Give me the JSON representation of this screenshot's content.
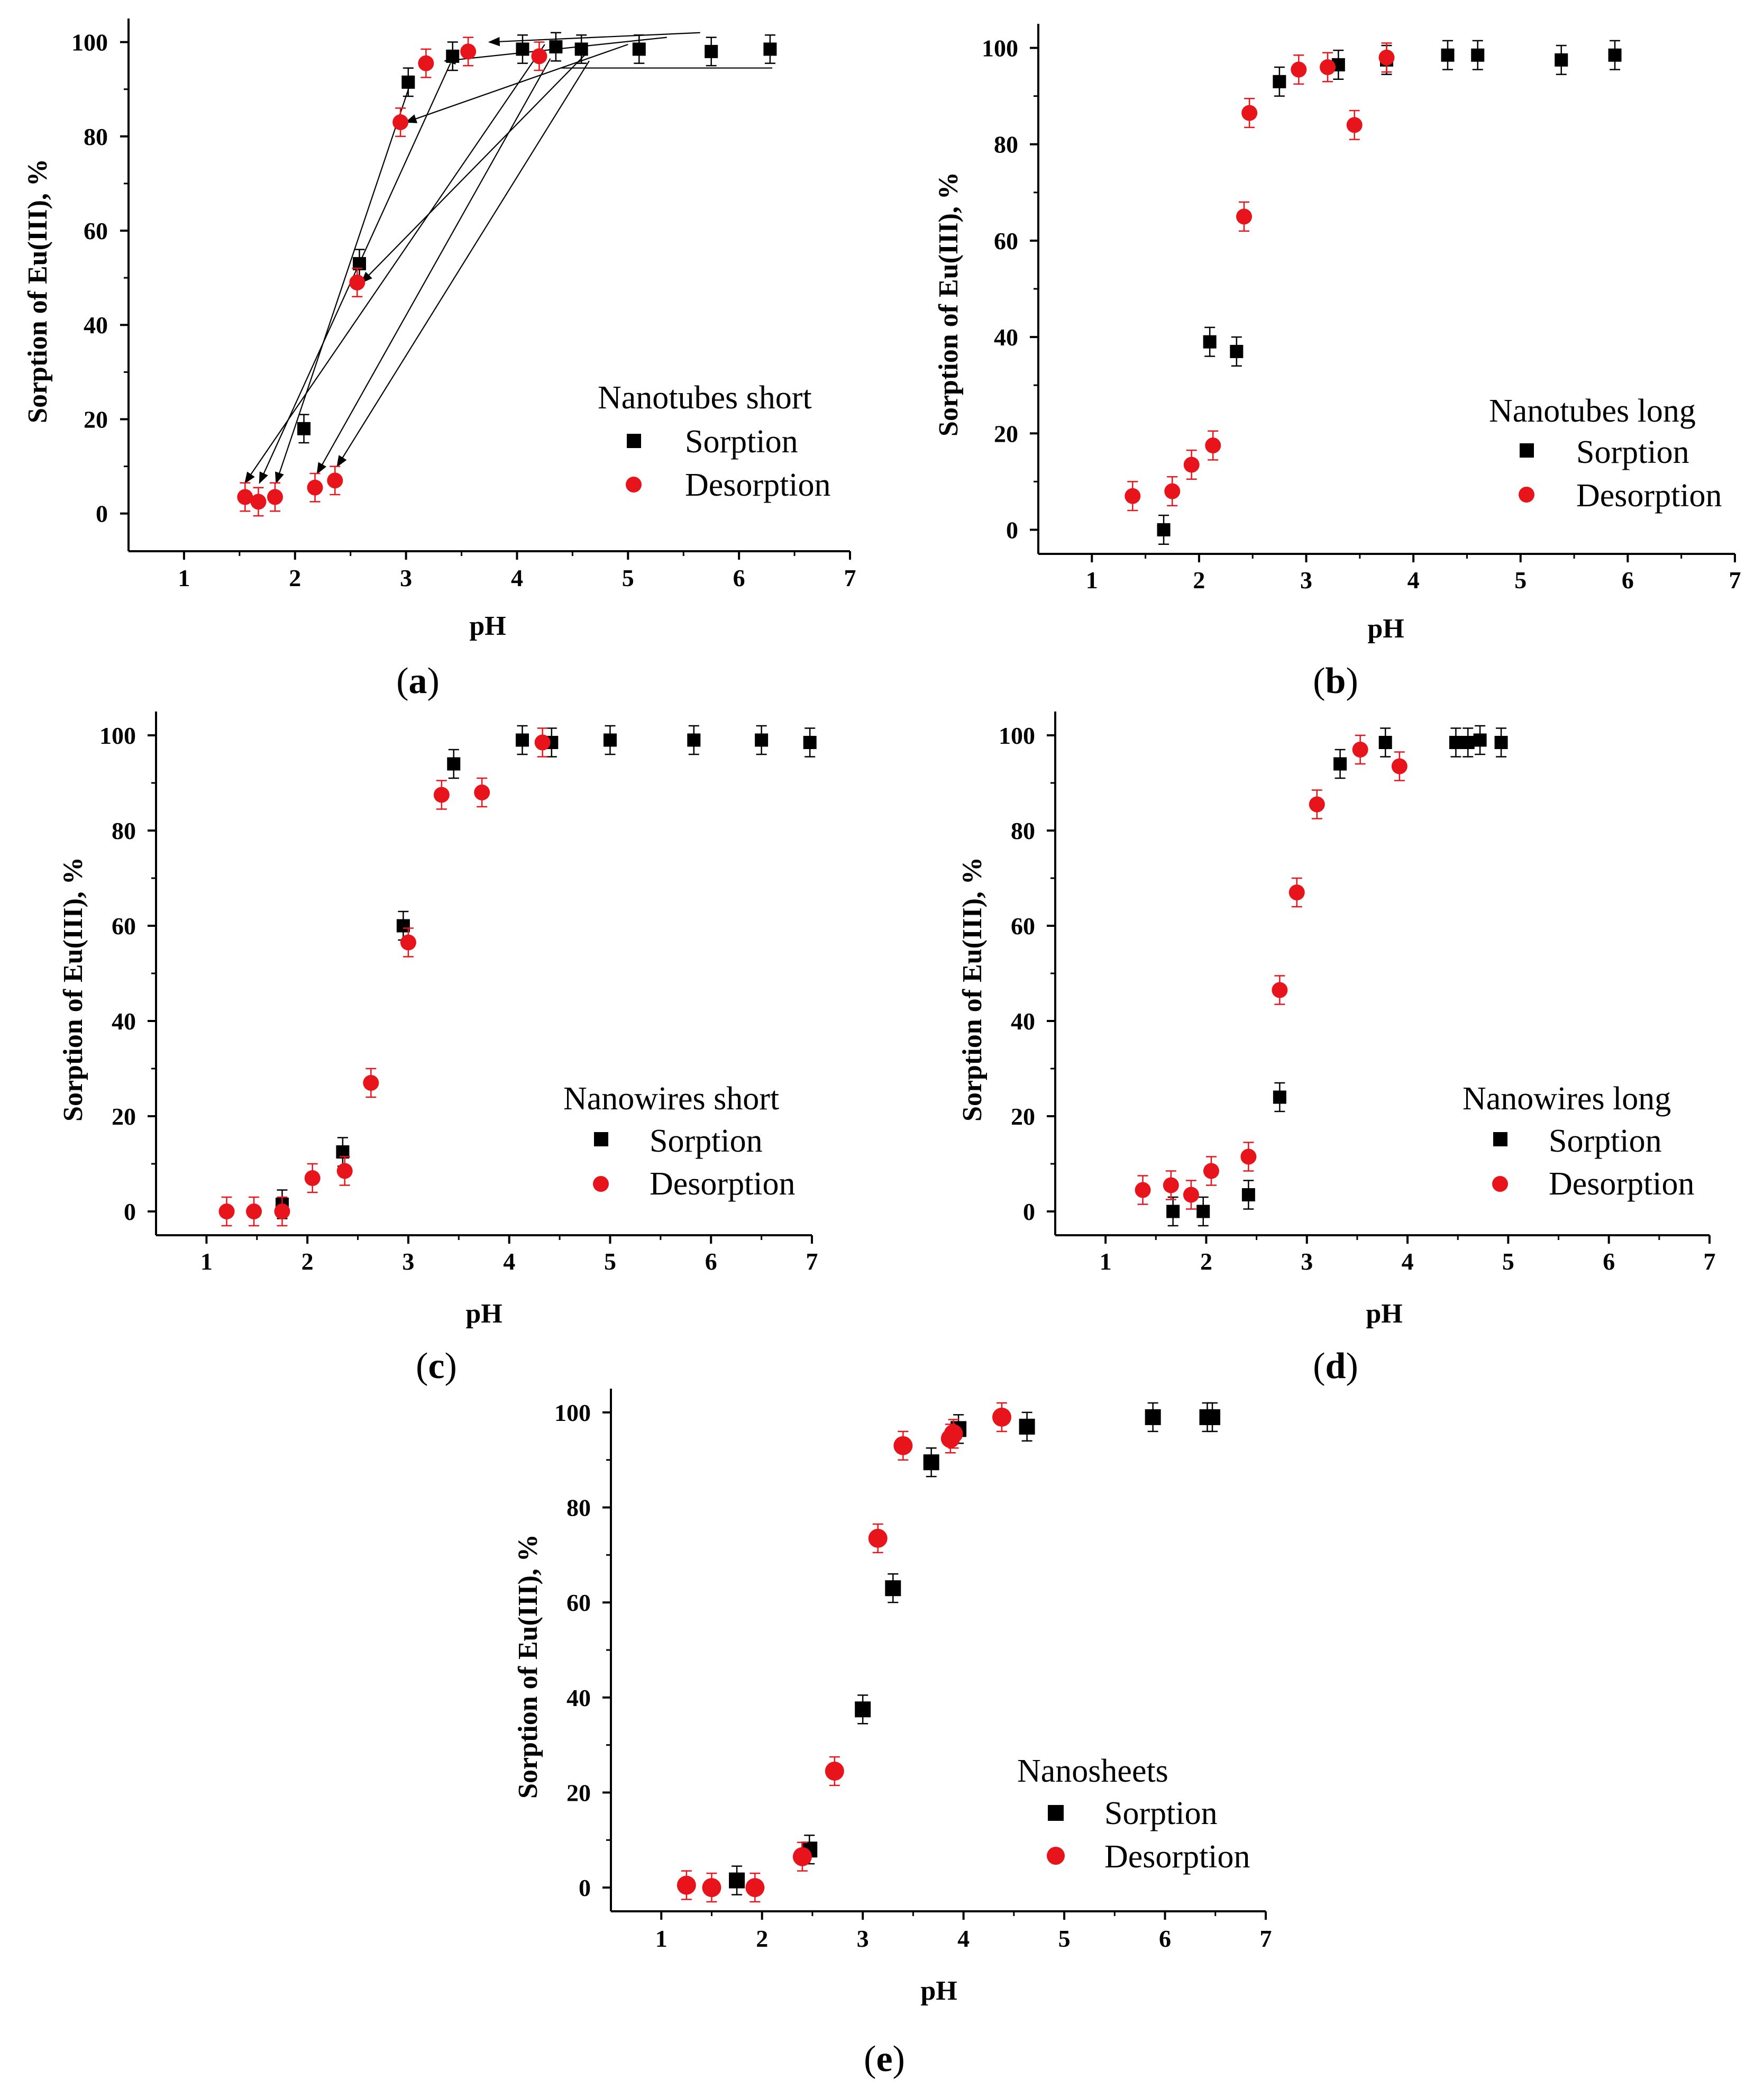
{
  "figure": {
    "panels": [
      {
        "id": "a",
        "label_open": "(",
        "label_letter": "a",
        "label_close": ")"
      },
      {
        "id": "b",
        "label_open": "(",
        "label_letter": "b",
        "label_close": ")"
      },
      {
        "id": "c",
        "label_open": "(",
        "label_letter": "c",
        "label_close": ")"
      },
      {
        "id": "d",
        "label_open": "(",
        "label_letter": "d",
        "label_close": ")"
      },
      {
        "id": "e",
        "label_open": "(",
        "label_letter": "e",
        "label_close": ")"
      }
    ]
  },
  "colors": {
    "sorption": "#000000",
    "desorption": "#e8141b",
    "axis": "#000000"
  },
  "chart_data": [
    {
      "id": "a",
      "type": "scatter",
      "title": "",
      "xlabel": "pH",
      "ylabel": "Sorption of Eu(III), %",
      "xlim": [
        0.5,
        7
      ],
      "ylim": [
        -8,
        105
      ],
      "xticks": [
        1,
        2,
        3,
        4,
        5,
        6,
        7
      ],
      "yticks": [
        0,
        20,
        40,
        60,
        80,
        100
      ],
      "legend_title": "Nanotubes short",
      "series": [
        {
          "name": "Sorption",
          "marker": "square",
          "x": [
            2.08,
            2.58,
            3.02,
            3.42,
            4.05,
            4.35,
            4.58,
            5.1,
            5.75,
            6.28
          ],
          "y": [
            18,
            53,
            91.5,
            97,
            98.5,
            99,
            98.5,
            98.5,
            98,
            98.5
          ],
          "err": 3
        },
        {
          "name": "Desorption",
          "marker": "circle",
          "x": [
            1.55,
            1.67,
            1.82,
            2.18,
            2.36,
            2.56,
            2.95,
            3.18,
            3.56,
            4.2
          ],
          "y": [
            3.5,
            2.5,
            3.5,
            5.5,
            7,
            49,
            83,
            95.5,
            98,
            97
          ],
          "err": 3
        }
      ],
      "arrows": [
        {
          "from": [
            5.65,
            102
          ],
          "to": [
            3.75,
            100
          ]
        },
        {
          "from": [
            5.35,
            101
          ],
          "to": [
            3.35,
            96
          ]
        },
        {
          "from": [
            5.0,
            99.5
          ],
          "to": [
            3.0,
            83
          ]
        },
        {
          "from": [
            4.25,
            99.5
          ],
          "to": [
            1.55,
            6.5
          ]
        },
        {
          "from": [
            3.4,
            95.5
          ],
          "to": [
            1.68,
            6.5
          ]
        },
        {
          "from": [
            3.05,
            92
          ],
          "to": [
            1.83,
            6.5
          ]
        },
        {
          "from": [
            4.62,
            97.5
          ],
          "to": [
            2.6,
            49
          ]
        },
        {
          "from": [
            4.3,
            96.5
          ],
          "to": [
            2.2,
            8.5
          ]
        },
        {
          "from": [
            4.65,
            96
          ],
          "to": [
            2.38,
            10
          ]
        }
      ],
      "hline": {
        "x": [
          4.4,
          6.3
        ],
        "y": 94.5
      }
    },
    {
      "id": "b",
      "type": "scatter",
      "title": "",
      "xlabel": "pH",
      "ylabel": "Sorption of Eu(III), %",
      "xlim": [
        0.5,
        7
      ],
      "ylim": [
        -5,
        105
      ],
      "xticks": [
        1,
        2,
        3,
        4,
        5,
        6,
        7
      ],
      "yticks": [
        0,
        20,
        40,
        60,
        80,
        100
      ],
      "legend_title": "Nanotubes long",
      "series": [
        {
          "name": "Sorption",
          "marker": "square",
          "x": [
            1.67,
            2.1,
            2.35,
            2.75,
            3.3,
            3.75,
            4.32,
            4.6,
            5.38,
            5.88
          ],
          "y": [
            0,
            39,
            37,
            93,
            96.5,
            97.5,
            98.5,
            98.5,
            97.5,
            98.5
          ],
          "err": 3
        },
        {
          "name": "Desorption",
          "marker": "circle",
          "x": [
            1.38,
            1.75,
            1.93,
            2.13,
            2.42,
            2.47,
            2.93,
            3.2,
            3.45,
            3.75
          ],
          "y": [
            7,
            8,
            13.5,
            17.5,
            65,
            86.5,
            95.5,
            96,
            84,
            98
          ],
          "err": 3
        }
      ]
    },
    {
      "id": "c",
      "type": "scatter",
      "title": "",
      "xlabel": "pH",
      "ylabel": "Sorption of Eu(III), %",
      "xlim": [
        0.5,
        7
      ],
      "ylim": [
        -5,
        105
      ],
      "xticks": [
        1,
        2,
        3,
        4,
        5,
        6,
        7
      ],
      "yticks": [
        0,
        20,
        40,
        60,
        80,
        100
      ],
      "legend_title": "Nanowires short",
      "series": [
        {
          "name": "Sorption",
          "marker": "square",
          "x": [
            1.75,
            2.35,
            2.95,
            3.45,
            4.13,
            4.42,
            5.0,
            5.83,
            6.5,
            6.98
          ],
          "y": [
            1.5,
            12.5,
            60,
            94,
            99,
            98.5,
            99,
            99,
            99,
            98.5
          ],
          "err": 3
        },
        {
          "name": "Desorption",
          "marker": "circle",
          "x": [
            1.2,
            1.47,
            1.75,
            2.05,
            2.37,
            2.63,
            3.0,
            3.33,
            3.73,
            4.33
          ],
          "y": [
            0,
            0,
            0,
            7,
            8.5,
            27,
            56.5,
            87.5,
            88,
            98.5
          ],
          "err": 3
        }
      ]
    },
    {
      "id": "d",
      "type": "scatter",
      "title": "",
      "xlabel": "pH",
      "ylabel": "Sorption of Eu(III), %",
      "xlim": [
        0.5,
        7
      ],
      "ylim": [
        -5,
        105
      ],
      "xticks": [
        1,
        2,
        3,
        4,
        5,
        6,
        7
      ],
      "yticks": [
        0,
        20,
        40,
        60,
        80,
        100
      ],
      "legend_title": "Nanowires long",
      "series": [
        {
          "name": "Sorption",
          "marker": "square",
          "x": [
            1.67,
            1.97,
            2.42,
            2.73,
            3.33,
            3.78,
            4.48,
            4.6,
            4.72,
            4.93
          ],
          "y": [
            0,
            0,
            3.5,
            24,
            94,
            98.5,
            98.5,
            98.5,
            99,
            98.5
          ],
          "err": 3
        },
        {
          "name": "Desorption",
          "marker": "circle",
          "x": [
            1.37,
            1.65,
            1.85,
            2.05,
            2.42,
            2.73,
            2.9,
            3.1,
            3.53,
            3.92
          ],
          "y": [
            4.5,
            5.5,
            3.5,
            8.5,
            11.5,
            46.5,
            67,
            85.5,
            97,
            93.5
          ],
          "err": 3
        }
      ]
    },
    {
      "id": "e",
      "type": "scatter",
      "title": "",
      "xlabel": "pH",
      "ylabel": "Sorption of Eu(III), %",
      "xlim": [
        0.5,
        7
      ],
      "ylim": [
        -5,
        105
      ],
      "xticks": [
        1,
        2,
        3,
        4,
        5,
        6,
        7
      ],
      "yticks": [
        0,
        20,
        40,
        60,
        80,
        100
      ],
      "legend_title": "Nanosheets",
      "series": [
        {
          "name": "Sorption",
          "marker": "square",
          "x": [
            1.75,
            2.47,
            3.0,
            3.3,
            3.68,
            3.95,
            4.63,
            5.88,
            6.42,
            6.47
          ],
          "y": [
            1.5,
            8,
            37.5,
            63,
            89.5,
            96.5,
            97,
            99,
            99,
            99
          ],
          "err": 3
        },
        {
          "name": "Desorption",
          "marker": "circle",
          "x": [
            1.25,
            1.5,
            1.93,
            2.4,
            2.72,
            3.15,
            3.4,
            3.87,
            3.9,
            4.38
          ],
          "y": [
            0.5,
            0,
            0,
            6.5,
            24.5,
            73.5,
            93,
            94.5,
            95.5,
            99
          ],
          "err": 3
        }
      ]
    }
  ]
}
